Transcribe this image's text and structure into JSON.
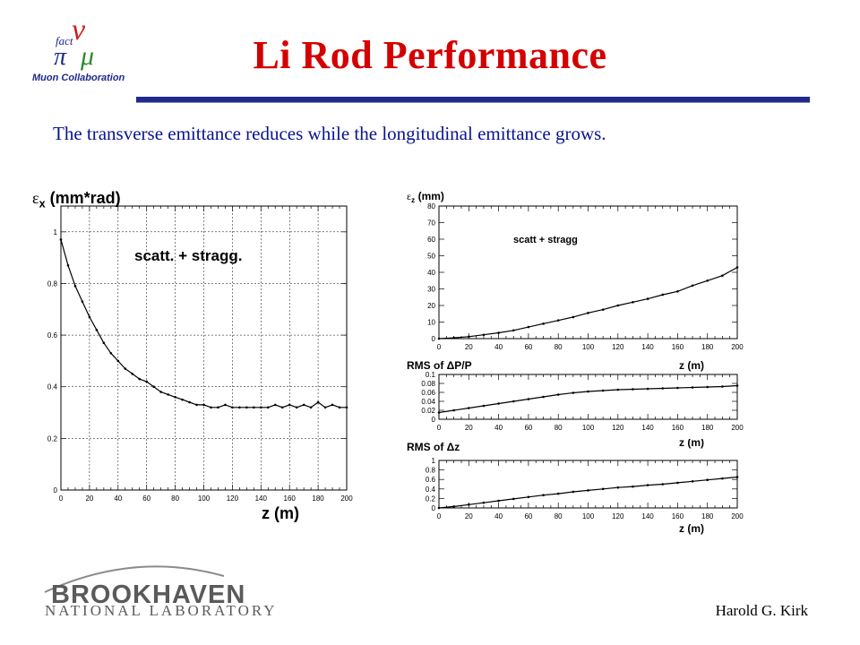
{
  "header": {
    "logo_text": {
      "fact": "fact",
      "nu": "ν",
      "mu": "μ",
      "pi": "π",
      "collab": "Muon Collaboration"
    },
    "title": "Li Rod Performance",
    "subtitle": "The transverse emittance reduces while the longitudinal emittance grows."
  },
  "footer": {
    "bnl_name": "BROOKHAVEN",
    "bnl_sub": "NATIONAL LABORATORY",
    "author": "Harold G. Kirk"
  },
  "colors": {
    "title": "#d40000",
    "subtitle": "#0a138f",
    "rule": "#1f2a8a",
    "plot": "#000000"
  },
  "chart_data": [
    {
      "id": "ex",
      "type": "line",
      "ylabel_sym": "ε",
      "ylabel_sub": "x",
      "ylabel_rest": " (mm*rad)",
      "xlabel": "z (m)",
      "annotation": "scatt. + stragg.",
      "xlim": [
        0,
        200
      ],
      "ylim": [
        0,
        1.1
      ],
      "xticks": [
        0,
        20,
        40,
        60,
        80,
        100,
        120,
        140,
        160,
        180,
        200
      ],
      "yticks": [
        0,
        0.2,
        0.4,
        0.6,
        0.8,
        1
      ],
      "ytick_labels": [
        "0",
        "0.2",
        "0.4",
        "0.6",
        "0.8",
        "1"
      ],
      "grid": true,
      "x": [
        0,
        5,
        10,
        15,
        20,
        25,
        30,
        35,
        40,
        45,
        50,
        55,
        60,
        65,
        70,
        75,
        80,
        85,
        90,
        95,
        100,
        105,
        110,
        115,
        120,
        125,
        130,
        135,
        140,
        145,
        150,
        155,
        160,
        165,
        170,
        175,
        180,
        185,
        190,
        195,
        200
      ],
      "y": [
        0.97,
        0.87,
        0.79,
        0.73,
        0.67,
        0.62,
        0.57,
        0.53,
        0.5,
        0.47,
        0.45,
        0.43,
        0.42,
        0.4,
        0.38,
        0.37,
        0.36,
        0.35,
        0.34,
        0.33,
        0.33,
        0.32,
        0.32,
        0.33,
        0.32,
        0.32,
        0.32,
        0.32,
        0.32,
        0.32,
        0.33,
        0.32,
        0.33,
        0.32,
        0.33,
        0.32,
        0.34,
        0.32,
        0.33,
        0.32,
        0.32
      ]
    },
    {
      "id": "ez",
      "type": "line",
      "ylabel_sym": "ε",
      "ylabel_sub": "z",
      "ylabel_rest": " (mm)",
      "xlabel": "",
      "annotation": "scatt + stragg",
      "xlim": [
        0,
        200
      ],
      "ylim": [
        0,
        80
      ],
      "xticks": [
        0,
        20,
        40,
        60,
        80,
        100,
        120,
        140,
        160,
        180,
        200
      ],
      "yticks": [
        0,
        10,
        20,
        30,
        40,
        50,
        60,
        70,
        80
      ],
      "ytick_labels": [
        "0",
        "10",
        "20",
        "30",
        "40",
        "50",
        "60",
        "70",
        "80"
      ],
      "grid": false,
      "x": [
        0,
        10,
        20,
        30,
        40,
        50,
        60,
        70,
        80,
        90,
        100,
        110,
        120,
        130,
        140,
        150,
        160,
        170,
        180,
        190,
        200
      ],
      "y": [
        0,
        0.5,
        1.2,
        2.3,
        3.5,
        5,
        7,
        9,
        11,
        13,
        15.5,
        17.5,
        20,
        22,
        24,
        26.5,
        28.5,
        32,
        35,
        38,
        43
      ]
    },
    {
      "id": "dpp",
      "type": "line",
      "ylabel": "RMS of ΔP/P",
      "xlabel": "z (m)",
      "xlim": [
        0,
        200
      ],
      "ylim": [
        0,
        0.1
      ],
      "xticks": [
        0,
        20,
        40,
        60,
        80,
        100,
        120,
        140,
        160,
        180,
        200
      ],
      "yticks": [
        0,
        0.02,
        0.04,
        0.06,
        0.08,
        0.1
      ],
      "ytick_labels": [
        "0",
        "0.02",
        "0.04",
        "0.06",
        "0.08",
        "0.1"
      ],
      "grid": false,
      "x": [
        0,
        10,
        20,
        30,
        40,
        50,
        60,
        70,
        80,
        90,
        100,
        110,
        120,
        130,
        140,
        150,
        160,
        170,
        180,
        190,
        200
      ],
      "y": [
        0.015,
        0.02,
        0.025,
        0.03,
        0.035,
        0.04,
        0.045,
        0.05,
        0.055,
        0.059,
        0.062,
        0.064,
        0.066,
        0.067,
        0.068,
        0.069,
        0.07,
        0.071,
        0.072,
        0.073,
        0.075
      ]
    },
    {
      "id": "dz",
      "type": "line",
      "ylabel": "RMS of Δz",
      "xlabel": "z (m)",
      "xlim": [
        0,
        200
      ],
      "ylim": [
        0,
        1
      ],
      "xticks": [
        0,
        20,
        40,
        60,
        80,
        100,
        120,
        140,
        160,
        180,
        200
      ],
      "yticks": [
        0,
        0.2,
        0.4,
        0.6,
        0.8,
        1
      ],
      "ytick_labels": [
        "0",
        "0.2",
        "0.4",
        "0.6",
        "0.8",
        "1"
      ],
      "grid": false,
      "x": [
        0,
        10,
        20,
        30,
        40,
        50,
        60,
        70,
        80,
        90,
        100,
        110,
        120,
        130,
        140,
        150,
        160,
        170,
        180,
        190,
        200
      ],
      "y": [
        0.0,
        0.03,
        0.07,
        0.11,
        0.15,
        0.19,
        0.23,
        0.27,
        0.3,
        0.34,
        0.37,
        0.4,
        0.43,
        0.45,
        0.48,
        0.5,
        0.53,
        0.56,
        0.59,
        0.62,
        0.65
      ]
    },
    {
      "id": "dz_axis_label",
      "type": "label_only",
      "xlabel": "z (m)"
    }
  ]
}
